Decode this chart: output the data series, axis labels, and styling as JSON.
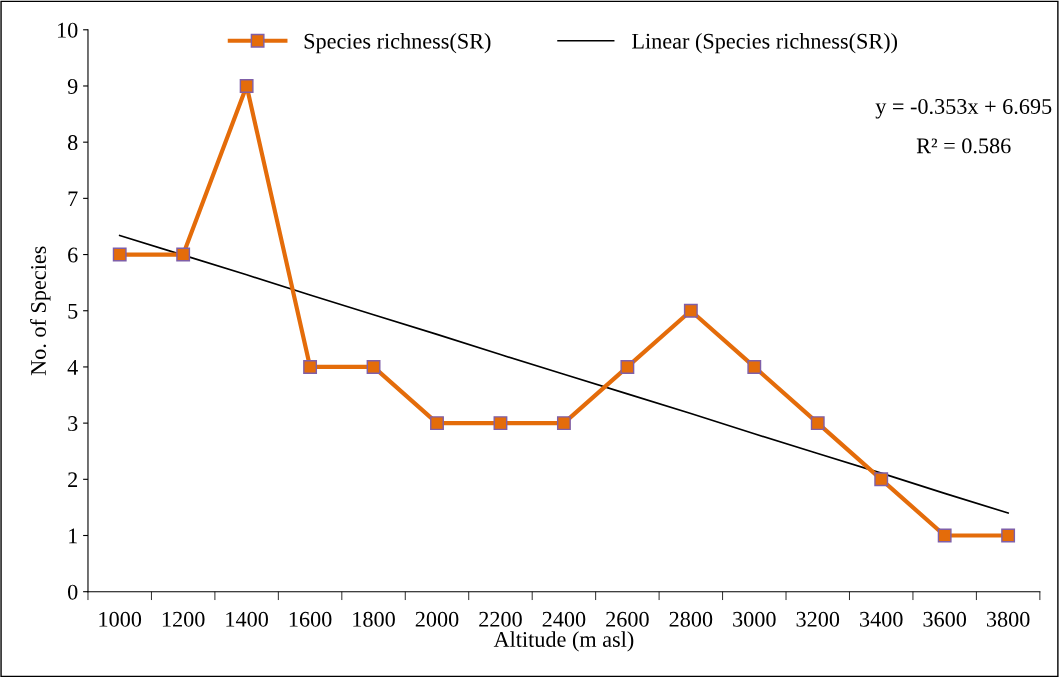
{
  "chart_data": {
    "type": "line",
    "xlabel": "Altitude (m asl)",
    "ylabel": "No. of Species",
    "categories": [
      "1000",
      "1200",
      "1400",
      "1600",
      "1800",
      "2000",
      "2200",
      "2400",
      "2600",
      "2800",
      "3000",
      "3200",
      "3400",
      "3600",
      "3800"
    ],
    "series": [
      {
        "name": "Species richness(SR)",
        "color": "#e46c0a",
        "marker": "square",
        "values": [
          6,
          6,
          9,
          4,
          4,
          3,
          3,
          3,
          4,
          5,
          4,
          3,
          2,
          1,
          1
        ]
      },
      {
        "name": "Linear (Species richness(SR))",
        "color": "#000000",
        "marker": "none",
        "values": [
          6.34,
          5.99,
          5.64,
          5.28,
          4.93,
          4.58,
          4.22,
          3.87,
          3.52,
          3.17,
          2.81,
          2.46,
          2.11,
          1.75,
          1.4
        ]
      }
    ],
    "ylim": [
      0,
      10
    ],
    "yticks": [
      0,
      1,
      2,
      3,
      4,
      5,
      6,
      7,
      8,
      9,
      10
    ],
    "annotations": [
      "y = -0.353x + 6.695",
      "R² = 0.586"
    ],
    "legend": "top",
    "grid": false
  }
}
